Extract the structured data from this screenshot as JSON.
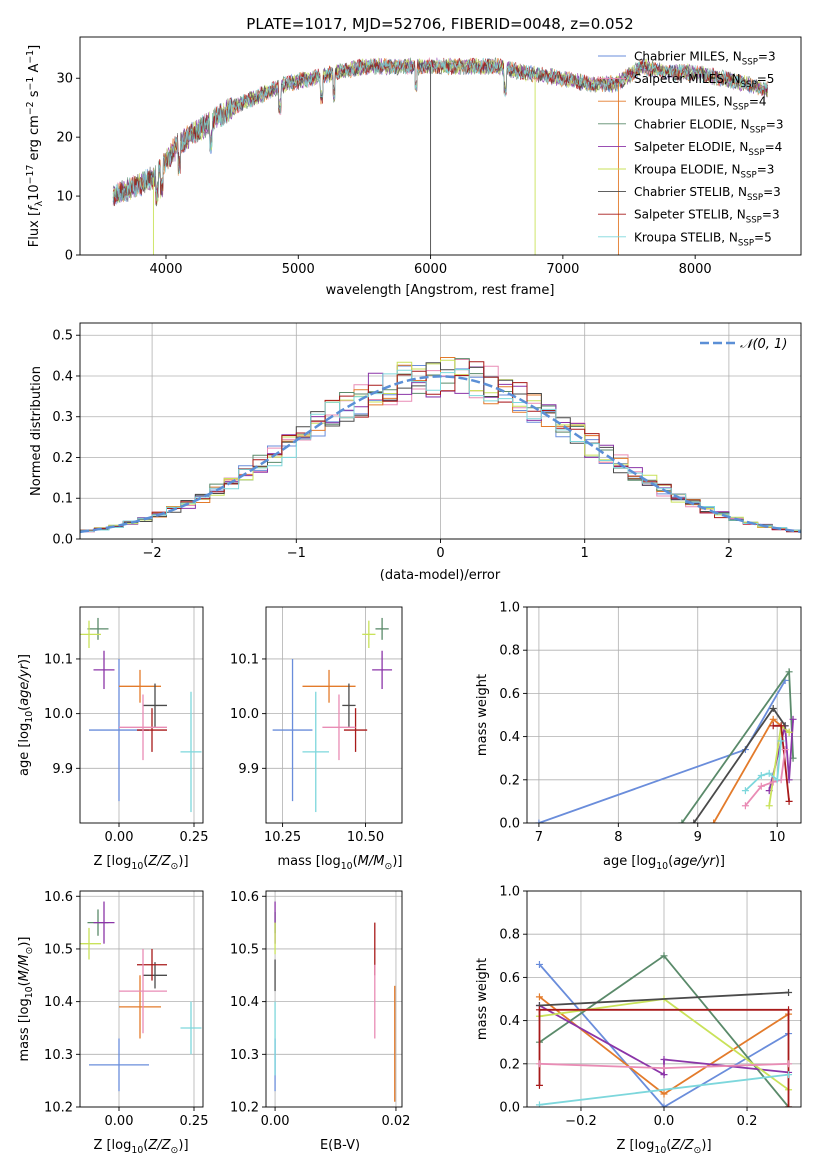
{
  "title": "PLATE=1017, MJD=52706, FIBERID=0048, z=0.052",
  "colors": [
    "#6a8ddb",
    "#e37b2b",
    "#5a8a6a",
    "#8b35a8",
    "#c9e25a",
    "#4a4a4a",
    "#a81a1a",
    "#e98cb5",
    "#7dd7dc"
  ],
  "models": [
    {
      "name": "Chabrier MILES, N_SSP=3",
      "base": "Chabrier MILES, N",
      "nssp": "3",
      "color": "#6a8ddb"
    },
    {
      "name": "Salpeter MILES, N_SSP=5",
      "base": "Salpeter MILES, N",
      "nssp": "5",
      "color": "#e98cb5"
    },
    {
      "name": "Kroupa MILES, N_SSP=4",
      "base": "Kroupa MILES, N",
      "nssp": "4",
      "color": "#e37b2b"
    },
    {
      "name": "Chabrier ELODIE, N_SSP=3",
      "base": "Chabrier ELODIE, N",
      "nssp": "3",
      "color": "#5a8a6a"
    },
    {
      "name": "Salpeter ELODIE, N_SSP=4",
      "base": "Salpeter ELODIE, N",
      "nssp": "4",
      "color": "#8b35a8"
    },
    {
      "name": "Kroupa ELODIE, N_SSP=3",
      "base": "Kroupa ELODIE, N",
      "nssp": "3",
      "color": "#c9e25a"
    },
    {
      "name": "Chabrier STELIB, N_SSP=3",
      "base": "Chabrier STELIB, N",
      "nssp": "3",
      "color": "#4a4a4a"
    },
    {
      "name": "Salpeter STELIB, N_SSP=3",
      "base": "Salpeter STELIB, N",
      "nssp": "3",
      "color": "#a81a1a"
    },
    {
      "name": "Kroupa STELIB, N_SSP=5",
      "base": "Kroupa STELIB, N",
      "nssp": "5",
      "color": "#7dd7dc"
    }
  ],
  "chart_data": [
    {
      "type": "line",
      "id": "spectrum",
      "xlabel": "wavelength [Angstrom, rest frame]",
      "ylabel": "Flux [f_λ10^-17 erg cm^-2 s^-1 A^-1]",
      "xlim": [
        3350,
        8800
      ],
      "ylim": [
        0,
        37
      ],
      "xticks": [
        4000,
        5000,
        6000,
        7000,
        8000
      ],
      "yticks": [
        0,
        10,
        20,
        30
      ],
      "legend": "top-right",
      "continuum": [
        [
          3600,
          10
        ],
        [
          3800,
          12
        ],
        [
          3900,
          13
        ],
        [
          4000,
          16
        ],
        [
          4100,
          19
        ],
        [
          4300,
          22
        ],
        [
          4500,
          25
        ],
        [
          4700,
          27
        ],
        [
          4900,
          29
        ],
        [
          5100,
          30
        ],
        [
          5300,
          31
        ],
        [
          5500,
          32
        ],
        [
          5800,
          32
        ],
        [
          6000,
          32
        ],
        [
          6300,
          32
        ],
        [
          6500,
          32
        ],
        [
          6700,
          31
        ],
        [
          7000,
          30
        ],
        [
          7200,
          29
        ],
        [
          7400,
          29
        ],
        [
          7600,
          32
        ],
        [
          7800,
          31
        ],
        [
          8000,
          31
        ],
        [
          8200,
          30
        ],
        [
          8400,
          29
        ],
        [
          8550,
          28
        ]
      ]
    },
    {
      "type": "bar",
      "id": "residuals",
      "xlabel": "(data-model)/error",
      "ylabel": "Normed distribution",
      "xlim": [
        -2.5,
        2.5
      ],
      "ylim": [
        0,
        0.53
      ],
      "xticks": [
        -2,
        -1,
        0,
        1,
        2
      ],
      "yticks": [
        0.0,
        0.1,
        0.2,
        0.3,
        0.4,
        0.5
      ],
      "legend": "top-right",
      "reference_label": "𝒩(0, 1)",
      "reference_color": "#5b8fd6",
      "bin_width": 0.1
    },
    {
      "type": "scatter",
      "id": "age-vs-metallicity",
      "xlabel": "Z [log10(Z/Z⊙)]",
      "ylabel": "age [log10(age/yr)]",
      "xlim": [
        -0.13,
        0.28
      ],
      "ylim": [
        9.8,
        10.195
      ],
      "xticks": [
        0.0,
        0.25
      ],
      "yticks": [
        9.9,
        10.0,
        10.1
      ],
      "points": [
        {
          "x": 0.0,
          "y": 9.97,
          "xerr": 0.1,
          "yerr": 0.13,
          "color": "#6a8ddb"
        },
        {
          "x": 0.07,
          "y": 10.05,
          "xerr": 0.07,
          "yerr": 0.03,
          "color": "#e37b2b"
        },
        {
          "x": -0.07,
          "y": 10.155,
          "xerr": 0.035,
          "yerr": 0.02,
          "color": "#5a8a6a"
        },
        {
          "x": -0.05,
          "y": 10.08,
          "xerr": 0.035,
          "yerr": 0.035,
          "color": "#8b35a8"
        },
        {
          "x": -0.1,
          "y": 10.145,
          "xerr": 0.04,
          "yerr": 0.025,
          "color": "#c9e25a"
        },
        {
          "x": 0.12,
          "y": 10.015,
          "xerr": 0.04,
          "yerr": 0.04,
          "color": "#4a4a4a"
        },
        {
          "x": 0.11,
          "y": 9.97,
          "xerr": 0.05,
          "yerr": 0.04,
          "color": "#a81a1a"
        },
        {
          "x": 0.08,
          "y": 9.975,
          "xerr": 0.08,
          "yerr": 0.06,
          "color": "#e98cb5"
        },
        {
          "x": 0.24,
          "y": 9.93,
          "xerr": 0.035,
          "yerr": 0.11,
          "color": "#7dd7dc"
        }
      ]
    },
    {
      "type": "scatter",
      "id": "age-vs-mass",
      "xlabel": "mass [log10(M/M⊙)]",
      "ylabel": "",
      "xlim": [
        10.2,
        10.61
      ],
      "ylim": [
        9.8,
        10.195
      ],
      "xticks": [
        10.25,
        10.5
      ],
      "yticks": [
        9.9,
        10.0,
        10.1
      ],
      "points": [
        {
          "x": 10.28,
          "y": 9.97,
          "xerr": 0.06,
          "yerr": 0.13,
          "color": "#6a8ddb"
        },
        {
          "x": 10.39,
          "y": 10.05,
          "xerr": 0.08,
          "yerr": 0.03,
          "color": "#e37b2b"
        },
        {
          "x": 10.55,
          "y": 10.155,
          "xerr": 0.02,
          "yerr": 0.02,
          "color": "#5a8a6a"
        },
        {
          "x": 10.55,
          "y": 10.08,
          "xerr": 0.03,
          "yerr": 0.035,
          "color": "#8b35a8"
        },
        {
          "x": 10.51,
          "y": 10.145,
          "xerr": 0.02,
          "yerr": 0.025,
          "color": "#c9e25a"
        },
        {
          "x": 10.45,
          "y": 10.015,
          "xerr": 0.02,
          "yerr": 0.04,
          "color": "#4a4a4a"
        },
        {
          "x": 10.47,
          "y": 9.97,
          "xerr": 0.035,
          "yerr": 0.04,
          "color": "#a81a1a"
        },
        {
          "x": 10.42,
          "y": 9.975,
          "xerr": 0.05,
          "yerr": 0.06,
          "color": "#e98cb5"
        },
        {
          "x": 10.35,
          "y": 9.93,
          "xerr": 0.04,
          "yerr": 0.11,
          "color": "#7dd7dc"
        }
      ]
    },
    {
      "type": "line",
      "id": "mass-weight-vs-age",
      "xlabel": "age [log10(age/yr)]",
      "ylabel": "mass weight",
      "xlim": [
        6.85,
        10.3
      ],
      "ylim": [
        0,
        1
      ],
      "xticks": [
        7,
        8,
        9,
        10
      ],
      "yticks": [
        0.0,
        0.2,
        0.4,
        0.6,
        0.8,
        1.0
      ],
      "series": [
        {
          "color": "#6a8ddb",
          "x": [
            7.0,
            9.6,
            10.1
          ],
          "y": [
            0.0,
            0.34,
            0.66
          ]
        },
        {
          "color": "#e37b2b",
          "x": [
            9.2,
            9.95,
            10.15
          ],
          "y": [
            0.0,
            0.48,
            0.42
          ]
        },
        {
          "color": "#5a8a6a",
          "x": [
            8.8,
            10.15,
            10.2
          ],
          "y": [
            0.0,
            0.7,
            0.3
          ]
        },
        {
          "color": "#8b35a8",
          "x": [
            9.9,
            10.1,
            10.15,
            10.2
          ],
          "y": [
            0.15,
            0.45,
            0.2,
            0.48
          ]
        },
        {
          "color": "#c9e25a",
          "x": [
            9.9,
            10.05,
            10.15
          ],
          "y": [
            0.08,
            0.45,
            0.42
          ]
        },
        {
          "color": "#4a4a4a",
          "x": [
            8.95,
            9.95,
            10.1
          ],
          "y": [
            0.0,
            0.53,
            0.45
          ]
        },
        {
          "color": "#a81a1a",
          "x": [
            9.95,
            10.05,
            10.15
          ],
          "y": [
            0.45,
            0.45,
            0.1
          ]
        },
        {
          "color": "#e98cb5",
          "x": [
            9.6,
            9.8,
            9.95,
            10.05,
            10.1
          ],
          "y": [
            0.08,
            0.17,
            0.19,
            0.2,
            0.34
          ]
        },
        {
          "color": "#7dd7dc",
          "x": [
            9.6,
            9.8,
            9.9,
            10.0,
            10.05
          ],
          "y": [
            0.15,
            0.22,
            0.23,
            0.2,
            0.38
          ]
        }
      ]
    },
    {
      "type": "scatter",
      "id": "mass-vs-metallicity",
      "xlabel": "Z [log10(Z/Z⊙)]",
      "ylabel": "mass [log10(M/M⊙)]",
      "xlim": [
        -0.13,
        0.28
      ],
      "ylim": [
        10.2,
        10.61
      ],
      "xticks": [
        0.0,
        0.25
      ],
      "yticks": [
        10.2,
        10.3,
        10.4,
        10.5,
        10.6
      ],
      "points": [
        {
          "x": 0.0,
          "y": 10.28,
          "xerr": 0.1,
          "yerr": 0.05,
          "color": "#6a8ddb"
        },
        {
          "x": 0.07,
          "y": 10.39,
          "xerr": 0.07,
          "yerr": 0.06,
          "color": "#e37b2b"
        },
        {
          "x": -0.07,
          "y": 10.55,
          "xerr": 0.035,
          "yerr": 0.025,
          "color": "#5a8a6a"
        },
        {
          "x": -0.05,
          "y": 10.55,
          "xerr": 0.035,
          "yerr": 0.04,
          "color": "#8b35a8"
        },
        {
          "x": -0.1,
          "y": 10.51,
          "xerr": 0.04,
          "yerr": 0.03,
          "color": "#c9e25a"
        },
        {
          "x": 0.12,
          "y": 10.45,
          "xerr": 0.04,
          "yerr": 0.025,
          "color": "#4a4a4a"
        },
        {
          "x": 0.11,
          "y": 10.47,
          "xerr": 0.05,
          "yerr": 0.03,
          "color": "#a81a1a"
        },
        {
          "x": 0.08,
          "y": 10.42,
          "xerr": 0.08,
          "yerr": 0.08,
          "color": "#e98cb5"
        },
        {
          "x": 0.24,
          "y": 10.35,
          "xerr": 0.035,
          "yerr": 0.05,
          "color": "#7dd7dc"
        }
      ]
    },
    {
      "type": "scatter",
      "id": "mass-vs-reddening",
      "xlabel": "E(B-V)",
      "ylabel": "",
      "xlim": [
        -0.0015,
        0.021
      ],
      "ylim": [
        10.2,
        10.61
      ],
      "xticks": [
        0.0,
        0.02
      ],
      "yticks": [
        10.2,
        10.3,
        10.4,
        10.5,
        10.6
      ],
      "points": [
        {
          "x": 0.0,
          "y": 10.28,
          "xerr": 0,
          "yerr": 0.05,
          "color": "#6a8ddb"
        },
        {
          "x": 0.0198,
          "y": 10.32,
          "xerr": 0,
          "yerr": 0.11,
          "color": "#e37b2b"
        },
        {
          "x": 0.0,
          "y": 10.55,
          "xerr": 0,
          "yerr": 0.02,
          "color": "#5a8a6a"
        },
        {
          "x": 0.0,
          "y": 10.55,
          "xerr": 0,
          "yerr": 0.04,
          "color": "#8b35a8"
        },
        {
          "x": 0.0,
          "y": 10.52,
          "xerr": 0,
          "yerr": 0.03,
          "color": "#c9e25a"
        },
        {
          "x": 0.0,
          "y": 10.45,
          "xerr": 0,
          "yerr": 0.03,
          "color": "#4a4a4a"
        },
        {
          "x": 0.0165,
          "y": 10.5,
          "xerr": 0,
          "yerr": 0.05,
          "color": "#a81a1a"
        },
        {
          "x": 0.0165,
          "y": 10.4,
          "xerr": 0,
          "yerr": 0.07,
          "color": "#e98cb5"
        },
        {
          "x": 0.0,
          "y": 10.33,
          "xerr": 0,
          "yerr": 0.07,
          "color": "#7dd7dc"
        }
      ]
    },
    {
      "type": "line",
      "id": "mass-weight-vs-metallicity",
      "xlabel": "Z [log10(Z/Z⊙)]",
      "ylabel": "mass weight",
      "xlim": [
        -0.33,
        0.33
      ],
      "ylim": [
        0,
        1
      ],
      "xticks": [
        -0.2,
        0.0,
        0.2
      ],
      "yticks": [
        0.0,
        0.2,
        0.4,
        0.6,
        0.8,
        1.0
      ],
      "series": [
        {
          "color": "#6a8ddb",
          "x": [
            -0.3,
            0.0,
            0.3
          ],
          "y": [
            0.66,
            0.0,
            0.34
          ]
        },
        {
          "color": "#e37b2b",
          "x": [
            -0.3,
            0.0,
            0.3
          ],
          "y": [
            0.51,
            0.06,
            0.43
          ]
        },
        {
          "color": "#5a8a6a",
          "x": [
            -0.3,
            0.0,
            0.3
          ],
          "y": [
            0.3,
            0.7,
            0.0
          ]
        },
        {
          "color": "#8b35a8",
          "x": [
            -0.3,
            0.0,
            0.0,
            0.3
          ],
          "y": [
            0.47,
            0.15,
            0.22,
            0.16
          ]
        },
        {
          "color": "#c9e25a",
          "x": [
            -0.3,
            0.0,
            0.3
          ],
          "y": [
            0.42,
            0.5,
            0.08
          ]
        },
        {
          "color": "#4a4a4a",
          "x": [
            -0.3,
            0.3
          ],
          "y": [
            0.47,
            0.53
          ]
        },
        {
          "color": "#a81a1a",
          "x": [
            -0.3,
            -0.3,
            0.3,
            0.3
          ],
          "y": [
            0.1,
            0.45,
            0.45,
            0.0
          ]
        },
        {
          "color": "#e98cb5",
          "x": [
            -0.3,
            0.0,
            0.3
          ],
          "y": [
            0.2,
            0.18,
            0.2
          ]
        },
        {
          "color": "#7dd7dc",
          "x": [
            -0.3,
            0.3
          ],
          "y": [
            0.01,
            0.15
          ]
        }
      ]
    }
  ]
}
